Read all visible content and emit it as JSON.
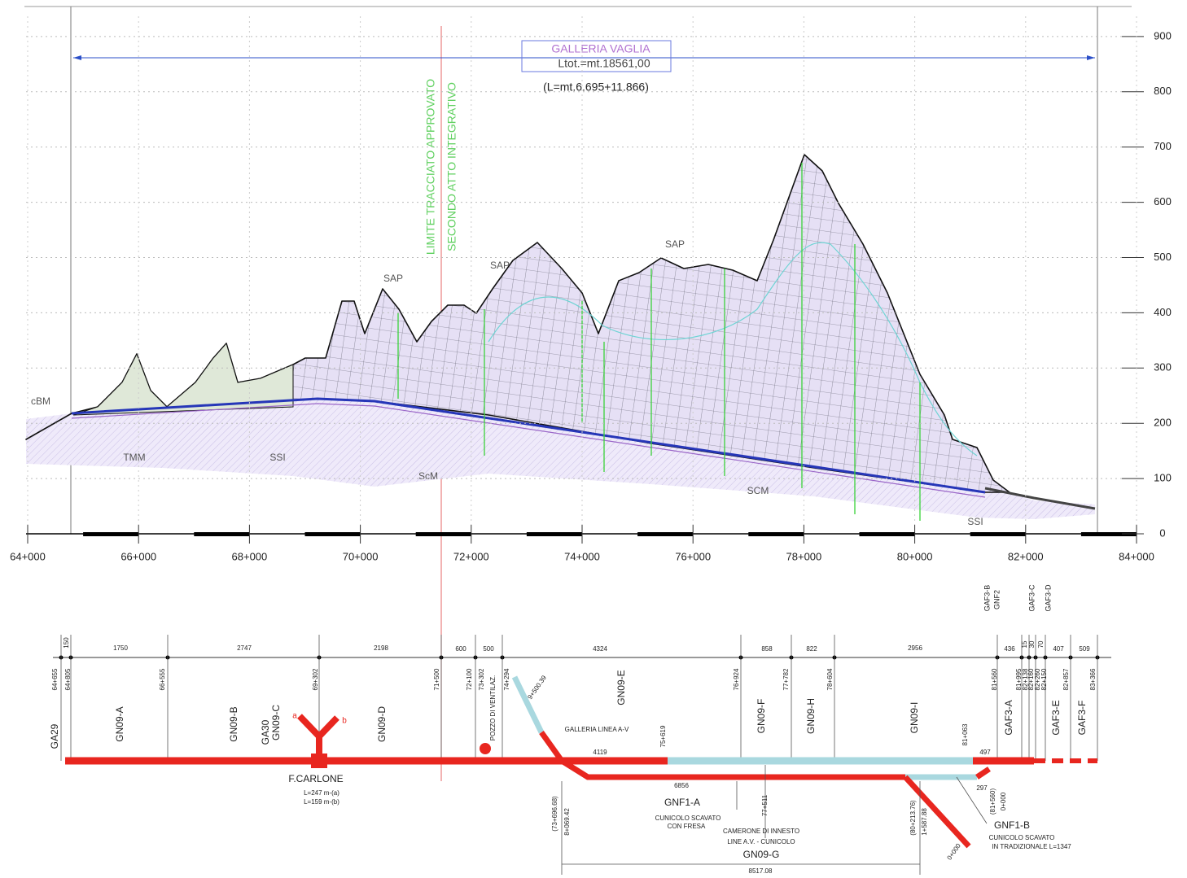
{
  "profile": {
    "title": "GALLERIA VAGLIA",
    "length": "Ltot.=mt.18561,00",
    "split": "(L=mt.6.695+11.866)",
    "limit": [
      "LIMITE TRACCIATO APPROVATO",
      "SECONDO ATTO INTEGRATIVO"
    ],
    "geology": [
      "cBM",
      "TMM",
      "SSI",
      "SAP",
      "ScM",
      "SAP",
      "SAP",
      "SCM",
      "SSI"
    ],
    "elevation_ticks": [
      0,
      100,
      200,
      300,
      400,
      500,
      600,
      700,
      800,
      900
    ],
    "chainage_ticks": [
      "64+000",
      "66+000",
      "68+000",
      "70+000",
      "72+000",
      "74+000",
      "76+000",
      "78+000",
      "80+000",
      "82+000",
      "84+000"
    ]
  },
  "plan": {
    "lengths": [
      "150",
      "1750",
      "2747",
      "2198",
      "600",
      "500",
      "4324",
      "858",
      "822",
      "2956",
      "436",
      "15",
      "30",
      "70",
      "407",
      "509"
    ],
    "top_labels": [
      "GAF3-B",
      "GNF2",
      "GAF3-C",
      "GAF3-D"
    ],
    "chainages": [
      "64+655",
      "64+805",
      "66+555",
      "69+302",
      "71+500",
      "72+100",
      "73+302",
      "POZZO DI VENTILAZ.",
      "74+294",
      "76+924",
      "77+782",
      "78+604",
      "81+560",
      "81+995",
      "82+138",
      "82+160",
      "82+260",
      "82+150",
      "82+857",
      "83+366"
    ],
    "segments": [
      "GA29",
      "GN09-A",
      "GN09-B",
      "GA30",
      "GN09-C",
      "GN09-D",
      "GN09-E",
      "GN09-F",
      "GN09-H",
      "GN09-I",
      "GAF3-A",
      "GAF3-E",
      "GAF3-F"
    ],
    "notes": [
      "9+500.39",
      "GALLERIA LINEA A-V",
      "4119",
      "75+619",
      "81+063",
      "497",
      "6856",
      "297",
      "(81+560)",
      "0+000",
      "F.CARLONE",
      "L=247 m-(a)",
      "L=159 m-(b)",
      "a",
      "b",
      "GNF1-A",
      "CUNICOLO SCAVATO",
      "CON FRESA",
      "(73+696.68)",
      "8+069.42",
      "77+511",
      "CAMERONE DI INNESTO",
      "LINE A.V. - CUNICOLO",
      "GN09-G",
      "8517.08",
      "(80+213.76)",
      "1+587.88",
      "0+000",
      "GNF1-B",
      "CUNICOLO SCAVATO",
      "IN TRADIZIONALE L=1347"
    ]
  }
}
